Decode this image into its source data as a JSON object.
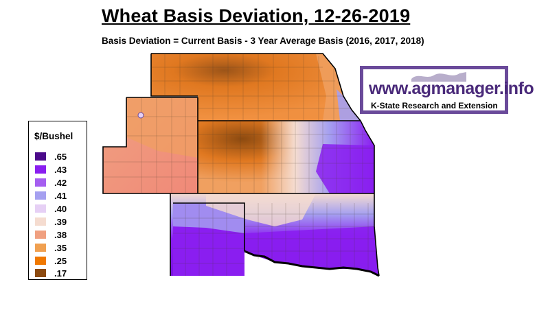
{
  "title": "Wheat Basis Deviation, 12-26-2019",
  "subtitle": "Basis Deviation = Current Basis - 3 Year Average Basis (2016, 2017, 2018)",
  "legend": {
    "title": "$/Bushel",
    "items": [
      {
        "label": ".65",
        "color": "#4b0a8a"
      },
      {
        "label": ".43",
        "color": "#8a1ef0"
      },
      {
        "label": ".42",
        "color": "#a55ef0"
      },
      {
        "label": ".41",
        "color": "#a5a0f0"
      },
      {
        "label": ".40",
        "color": "#e6d0f5"
      },
      {
        "label": ".39",
        "color": "#f5dcd0"
      },
      {
        "label": ".38",
        "color": "#f0a080"
      },
      {
        "label": ".35",
        "color": "#f0a050"
      },
      {
        "label": ".25",
        "color": "#f07800"
      },
      {
        "label": ".17",
        "color": "#8c4a10"
      }
    ]
  },
  "logo": {
    "url_text": "www.agmanager.info",
    "subtitle": "K-State Research and Extension",
    "color": "#6a4a9a"
  },
  "colors": {
    "orange_dark": "#8c4a10",
    "orange": "#e07820",
    "light_orange": "#f0a060",
    "salmon": "#f0a080",
    "pink": "#f5dcd0",
    "lavender": "#a5a0f0",
    "purple": "#8a1ef0"
  }
}
